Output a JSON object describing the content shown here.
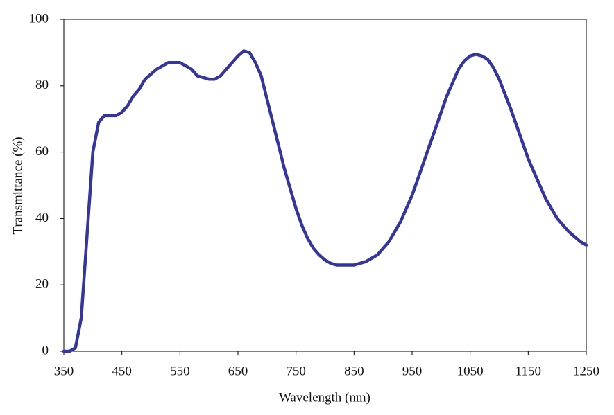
{
  "chart_data": {
    "type": "line",
    "xlabel": "Wavelength (nm)",
    "ylabel": "Transmittance (%)",
    "x": [
      350,
      360,
      370,
      380,
      390,
      400,
      410,
      420,
      430,
      440,
      450,
      460,
      470,
      480,
      490,
      500,
      510,
      520,
      530,
      540,
      550,
      560,
      570,
      580,
      590,
      600,
      610,
      620,
      630,
      640,
      650,
      660,
      670,
      680,
      690,
      700,
      710,
      720,
      730,
      740,
      750,
      760,
      770,
      780,
      790,
      800,
      810,
      820,
      830,
      840,
      850,
      860,
      870,
      880,
      890,
      900,
      910,
      920,
      930,
      940,
      950,
      960,
      970,
      980,
      990,
      1000,
      1010,
      1020,
      1030,
      1040,
      1050,
      1060,
      1070,
      1080,
      1090,
      1100,
      1110,
      1120,
      1130,
      1140,
      1150,
      1160,
      1170,
      1180,
      1190,
      1200,
      1210,
      1220,
      1230,
      1240,
      1250
    ],
    "values": [
      0,
      0,
      1,
      10,
      35,
      60,
      69,
      71,
      71,
      71,
      72,
      74,
      77,
      79,
      82,
      83.5,
      85,
      86,
      87,
      87,
      87,
      86,
      85,
      83,
      82.5,
      82,
      82,
      83,
      85,
      87,
      89,
      90.5,
      90,
      87,
      83,
      76,
      69,
      62,
      55,
      49,
      43,
      38,
      34,
      31,
      29,
      27.5,
      26.5,
      26,
      26,
      26,
      26,
      26.5,
      27,
      28,
      29,
      31,
      33,
      36,
      39,
      43,
      47,
      52,
      57,
      62,
      67,
      72,
      77,
      81,
      85,
      87.5,
      89,
      89.5,
      89,
      88,
      85.5,
      82,
      77.5,
      73,
      68,
      63,
      58,
      54,
      50,
      46,
      43,
      40,
      38,
      36,
      34.5,
      33,
      32
    ],
    "color": "#3535a0",
    "xlim": [
      350,
      1250
    ],
    "ylim": [
      0,
      100
    ],
    "xticks": [
      350,
      450,
      550,
      650,
      750,
      850,
      950,
      1050,
      1150,
      1250
    ],
    "yticks": [
      0,
      20,
      40,
      60,
      80,
      100
    ]
  }
}
